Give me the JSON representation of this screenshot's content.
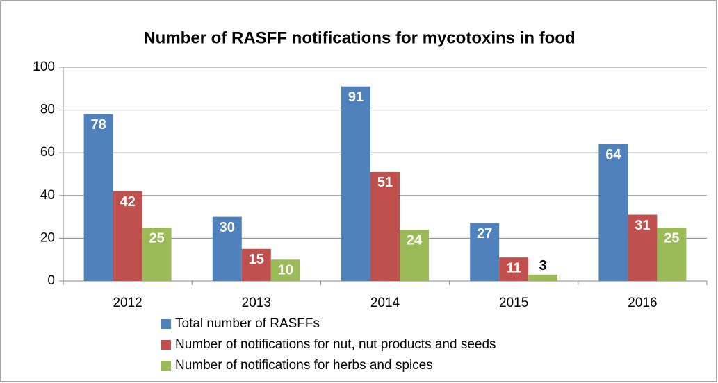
{
  "chart_data": {
    "type": "bar",
    "title": "Number of RASFF notifications for mycotoxins in food",
    "categories": [
      "2012",
      "2013",
      "2014",
      "2015",
      "2016"
    ],
    "series": [
      {
        "name": "Total number of RASFFs",
        "color": "#4f81bd",
        "values": [
          78,
          30,
          91,
          27,
          64
        ]
      },
      {
        "name": "Number of notifications for nut, nut products and seeds",
        "color": "#c0504d",
        "values": [
          42,
          15,
          51,
          11,
          31
        ]
      },
      {
        "name": "Number of notifications for herbs and spices",
        "color": "#9bbb59",
        "values": [
          25,
          10,
          24,
          3,
          25
        ]
      }
    ],
    "ylim": [
      0,
      100
    ],
    "yticks": [
      0,
      20,
      40,
      60,
      80,
      100
    ],
    "grid": true,
    "legend": "bottom"
  }
}
